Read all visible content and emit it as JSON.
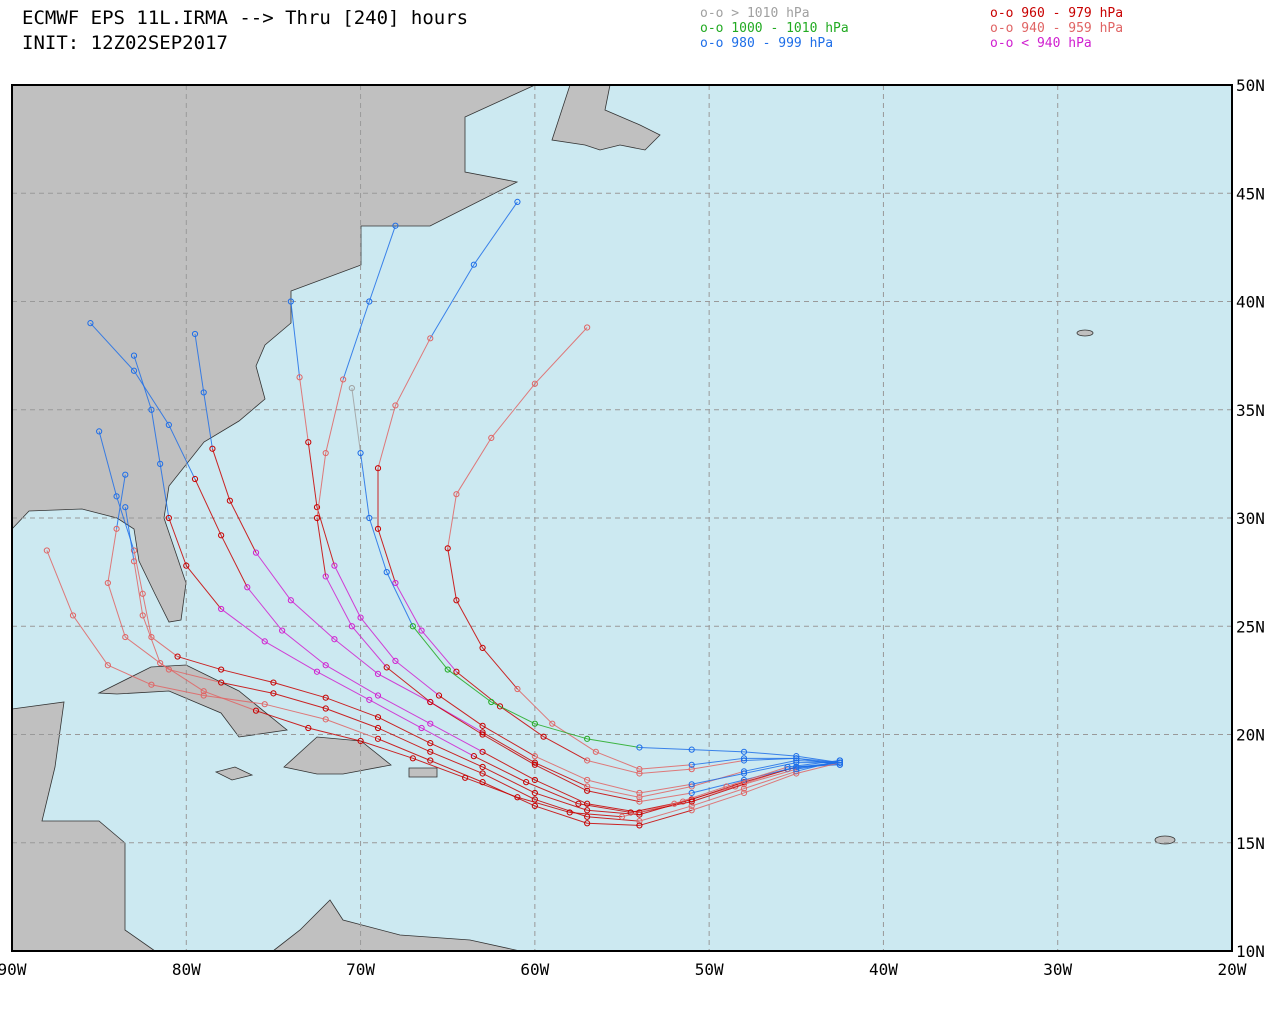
{
  "header": {
    "title": "ECMWF EPS 11L.IRMA --> Thru [240] hours",
    "init": "INIT: 12Z02SEP2017"
  },
  "legend": [
    {
      "label": "o-o > 1010 hPa",
      "color": "#a0a0a0"
    },
    {
      "label": "o-o 1000 - 1010 hPa",
      "color": "#22aa22"
    },
    {
      "label": "o-o 980 - 999 hPa",
      "color": "#1e6ee8"
    },
    {
      "label": "o-o 960 - 979 hPa",
      "color": "#c80000"
    },
    {
      "label": "o-o 940 - 959 hPa",
      "color": "#e06464"
    },
    {
      "label": "o-o < 940 hPa",
      "color": "#d020d0"
    }
  ],
  "map": {
    "lonlim": [
      -90,
      -20
    ],
    "latlim": [
      10,
      50
    ],
    "grid": true,
    "lon_ticks": [
      {
        "value": -90,
        "label": "90W"
      },
      {
        "value": -80,
        "label": "80W"
      },
      {
        "value": -70,
        "label": "70W"
      },
      {
        "value": -60,
        "label": "60W"
      },
      {
        "value": -50,
        "label": "50W"
      },
      {
        "value": -40,
        "label": "40W"
      },
      {
        "value": -30,
        "label": "30W"
      },
      {
        "value": -20,
        "label": "20W"
      }
    ],
    "lat_ticks": [
      {
        "value": 10,
        "label": "10N"
      },
      {
        "value": 15,
        "label": "15N"
      },
      {
        "value": 20,
        "label": "20N"
      },
      {
        "value": 25,
        "label": "25N"
      },
      {
        "value": 30,
        "label": "30N"
      },
      {
        "value": 35,
        "label": "35N"
      },
      {
        "value": 40,
        "label": "40N"
      },
      {
        "value": 45,
        "label": "45N"
      },
      {
        "value": 50,
        "label": "50N"
      }
    ]
  },
  "tracks": [
    {
      "lon": [
        -42.5,
        -45.5,
        -48.5,
        -51.5,
        -54.5,
        -57.5,
        -60.5,
        -63.5,
        -66.5,
        -69.5,
        -72.5,
        -75.5,
        -78,
        -80,
        -81,
        -81.5,
        -82,
        -83
      ],
      "lat": [
        18.7,
        18.4,
        17.6,
        16.9,
        16.4,
        16.8,
        17.8,
        19.0,
        20.3,
        21.6,
        22.9,
        24.3,
        25.8,
        27.8,
        30,
        32.5,
        35,
        37.5
      ],
      "cat": [
        2,
        2,
        4,
        4,
        3,
        3,
        3,
        3,
        5,
        5,
        5,
        5,
        5,
        3,
        3,
        2,
        2,
        2
      ]
    },
    {
      "lon": [
        -42.5,
        -45,
        -48,
        -51,
        -54,
        -57,
        -60,
        -63,
        -66,
        -69,
        -72,
        -75,
        -78,
        -80.5,
        -82,
        -82.5,
        -83,
        -84,
        -85
      ],
      "lat": [
        18.6,
        18.5,
        17.8,
        17.0,
        16.3,
        16.5,
        17.3,
        18.5,
        19.6,
        20.8,
        21.7,
        22.4,
        23.0,
        23.6,
        24.5,
        26.5,
        28.5,
        31,
        34
      ],
      "cat": [
        2,
        2,
        3,
        3,
        3,
        3,
        3,
        3,
        3,
        3,
        3,
        3,
        3,
        3,
        4,
        4,
        4,
        2,
        2
      ]
    },
    {
      "lon": [
        -42.5,
        -45,
        -48,
        -51,
        -54,
        -57,
        -60,
        -63,
        -66,
        -69,
        -72,
        -75,
        -78,
        -81,
        -83.5,
        -84.5,
        -84,
        -83.5
      ],
      "lat": [
        18.8,
        18.3,
        17.5,
        16.7,
        16.0,
        16.2,
        17.0,
        18.2,
        19.2,
        20.3,
        21.2,
        21.9,
        22.4,
        23.0,
        24.5,
        27.0,
        29.5,
        32
      ],
      "cat": [
        2,
        2,
        4,
        4,
        4,
        3,
        3,
        3,
        3,
        3,
        3,
        3,
        3,
        4,
        4,
        4,
        4,
        2
      ]
    },
    {
      "lon": [
        -42.5,
        -45,
        -48,
        -51,
        -54,
        -57,
        -60,
        -63,
        -66,
        -69,
        -71.5,
        -74,
        -76,
        -77.5,
        -78.5,
        -79,
        -79.5
      ],
      "lat": [
        18.7,
        18.8,
        18.3,
        17.6,
        17.1,
        17.6,
        18.7,
        20.1,
        21.5,
        22.8,
        24.4,
        26.2,
        28.4,
        30.8,
        33.2,
        35.8,
        38.5
      ],
      "cat": [
        2,
        2,
        2,
        4,
        4,
        4,
        3,
        3,
        5,
        5,
        5,
        5,
        5,
        3,
        3,
        2,
        2
      ]
    },
    {
      "lon": [
        -42.5,
        -45,
        -48,
        -51,
        -54,
        -57,
        -60,
        -63,
        -65.5,
        -68,
        -70,
        -71.5,
        -72.5,
        -73,
        -73.5,
        -74
      ],
      "lat": [
        18.7,
        18.7,
        18.2,
        17.7,
        17.3,
        17.9,
        19.0,
        20.4,
        21.8,
        23.4,
        25.4,
        27.8,
        30.5,
        33.5,
        36.5,
        40
      ],
      "cat": [
        2,
        2,
        2,
        2,
        4,
        4,
        4,
        3,
        3,
        5,
        5,
        5,
        3,
        3,
        4,
        2
      ]
    },
    {
      "lon": [
        -42.5,
        -45,
        -48,
        -51,
        -54,
        -57,
        -59.5,
        -62,
        -64.5,
        -66.5,
        -68,
        -69,
        -69,
        -68,
        -66,
        -63.5,
        -61
      ],
      "lat": [
        18.6,
        18.9,
        18.8,
        18.4,
        18.2,
        18.8,
        19.9,
        21.3,
        22.9,
        24.8,
        27,
        29.5,
        32.3,
        35.2,
        38.3,
        41.7,
        44.6
      ],
      "cat": [
        2,
        2,
        2,
        4,
        4,
        4,
        3,
        3,
        3,
        5,
        5,
        3,
        3,
        4,
        4,
        2,
        2
      ]
    },
    {
      "lon": [
        -42.5,
        -45,
        -48,
        -51,
        -54,
        -56.5,
        -59,
        -61,
        -63,
        -64.5,
        -65,
        -64.5,
        -62.5,
        -60,
        -57
      ],
      "lat": [
        18.7,
        18.9,
        18.9,
        18.6,
        18.4,
        19.2,
        20.5,
        22.1,
        24.0,
        26.2,
        28.6,
        31.1,
        33.7,
        36.2,
        38.8
      ],
      "cat": [
        2,
        2,
        2,
        2,
        4,
        4,
        4,
        4,
        3,
        3,
        3,
        4,
        4,
        4,
        4
      ]
    },
    {
      "lon": [
        -42.5,
        -45,
        -48,
        -51,
        -54,
        -57,
        -60,
        -63,
        -66,
        -68.5,
        -70.5,
        -72,
        -72.5,
        -72,
        -71,
        -69.5,
        -68
      ],
      "lat": [
        18.7,
        18.5,
        17.9,
        17.3,
        16.9,
        17.4,
        18.6,
        20.0,
        21.5,
        23.1,
        25.0,
        27.3,
        30,
        33,
        36.4,
        40,
        43.5
      ],
      "cat": [
        2,
        2,
        2,
        2,
        4,
        3,
        3,
        3,
        3,
        3,
        5,
        5,
        3,
        4,
        4,
        2,
        2
      ]
    },
    {
      "lon": [
        -42.5,
        -45,
        -48,
        -51,
        -54,
        -57,
        -60,
        -63,
        -66,
        -69,
        -72,
        -75.5,
        -79,
        -82,
        -84.5,
        -86.5,
        -88
      ],
      "lat": [
        18.7,
        18.2,
        17.3,
        16.5,
        15.8,
        15.9,
        16.7,
        17.8,
        18.8,
        19.8,
        20.7,
        21.4,
        21.8,
        22.3,
        23.2,
        25.5,
        28.5
      ],
      "cat": [
        2,
        4,
        4,
        4,
        3,
        3,
        3,
        3,
        3,
        3,
        4,
        4,
        4,
        4,
        4,
        4,
        4
      ]
    },
    {
      "lon": [
        -42.5,
        -45,
        -48,
        -51,
        -54,
        -57,
        -60,
        -63,
        -66,
        -69,
        -72,
        -74.5,
        -76.5,
        -78,
        -79.5,
        -81,
        -83,
        -85.5
      ],
      "lat": [
        18.7,
        18.4,
        17.7,
        16.9,
        16.4,
        16.8,
        17.9,
        19.2,
        20.5,
        21.8,
        23.2,
        24.8,
        26.8,
        29.2,
        31.8,
        34.3,
        36.8,
        39
      ],
      "cat": [
        2,
        2,
        4,
        3,
        3,
        3,
        3,
        3,
        5,
        5,
        5,
        5,
        5,
        3,
        3,
        2,
        2,
        2
      ]
    },
    {
      "lon": [
        -42.5,
        -45.5,
        -49,
        -52,
        -55,
        -58,
        -61,
        -64,
        -67,
        -70,
        -73,
        -76,
        -79,
        -81.5,
        -82.5,
        -83,
        -83.5
      ],
      "lat": [
        18.8,
        18.5,
        17.6,
        16.8,
        16.2,
        16.4,
        17.1,
        18.0,
        18.9,
        19.7,
        20.3,
        21.1,
        22.0,
        23.3,
        25.5,
        28,
        30.5
      ],
      "cat": [
        2,
        2,
        4,
        4,
        4,
        3,
        3,
        3,
        3,
        3,
        3,
        3,
        4,
        4,
        4,
        4,
        2
      ]
    },
    {
      "lon": [
        -42.5,
        -45,
        -48,
        -51,
        -54,
        -57,
        -60,
        -62.5,
        -65,
        -67,
        -68.5,
        -69.5,
        -70,
        -70.5
      ],
      "lat": [
        18.7,
        19.0,
        19.2,
        19.3,
        19.4,
        19.8,
        20.5,
        21.5,
        23.0,
        25.0,
        27.5,
        30.0,
        33,
        36
      ],
      "cat": [
        2,
        2,
        2,
        2,
        2,
        1,
        1,
        1,
        1,
        1,
        2,
        2,
        2,
        0
      ]
    }
  ]
}
